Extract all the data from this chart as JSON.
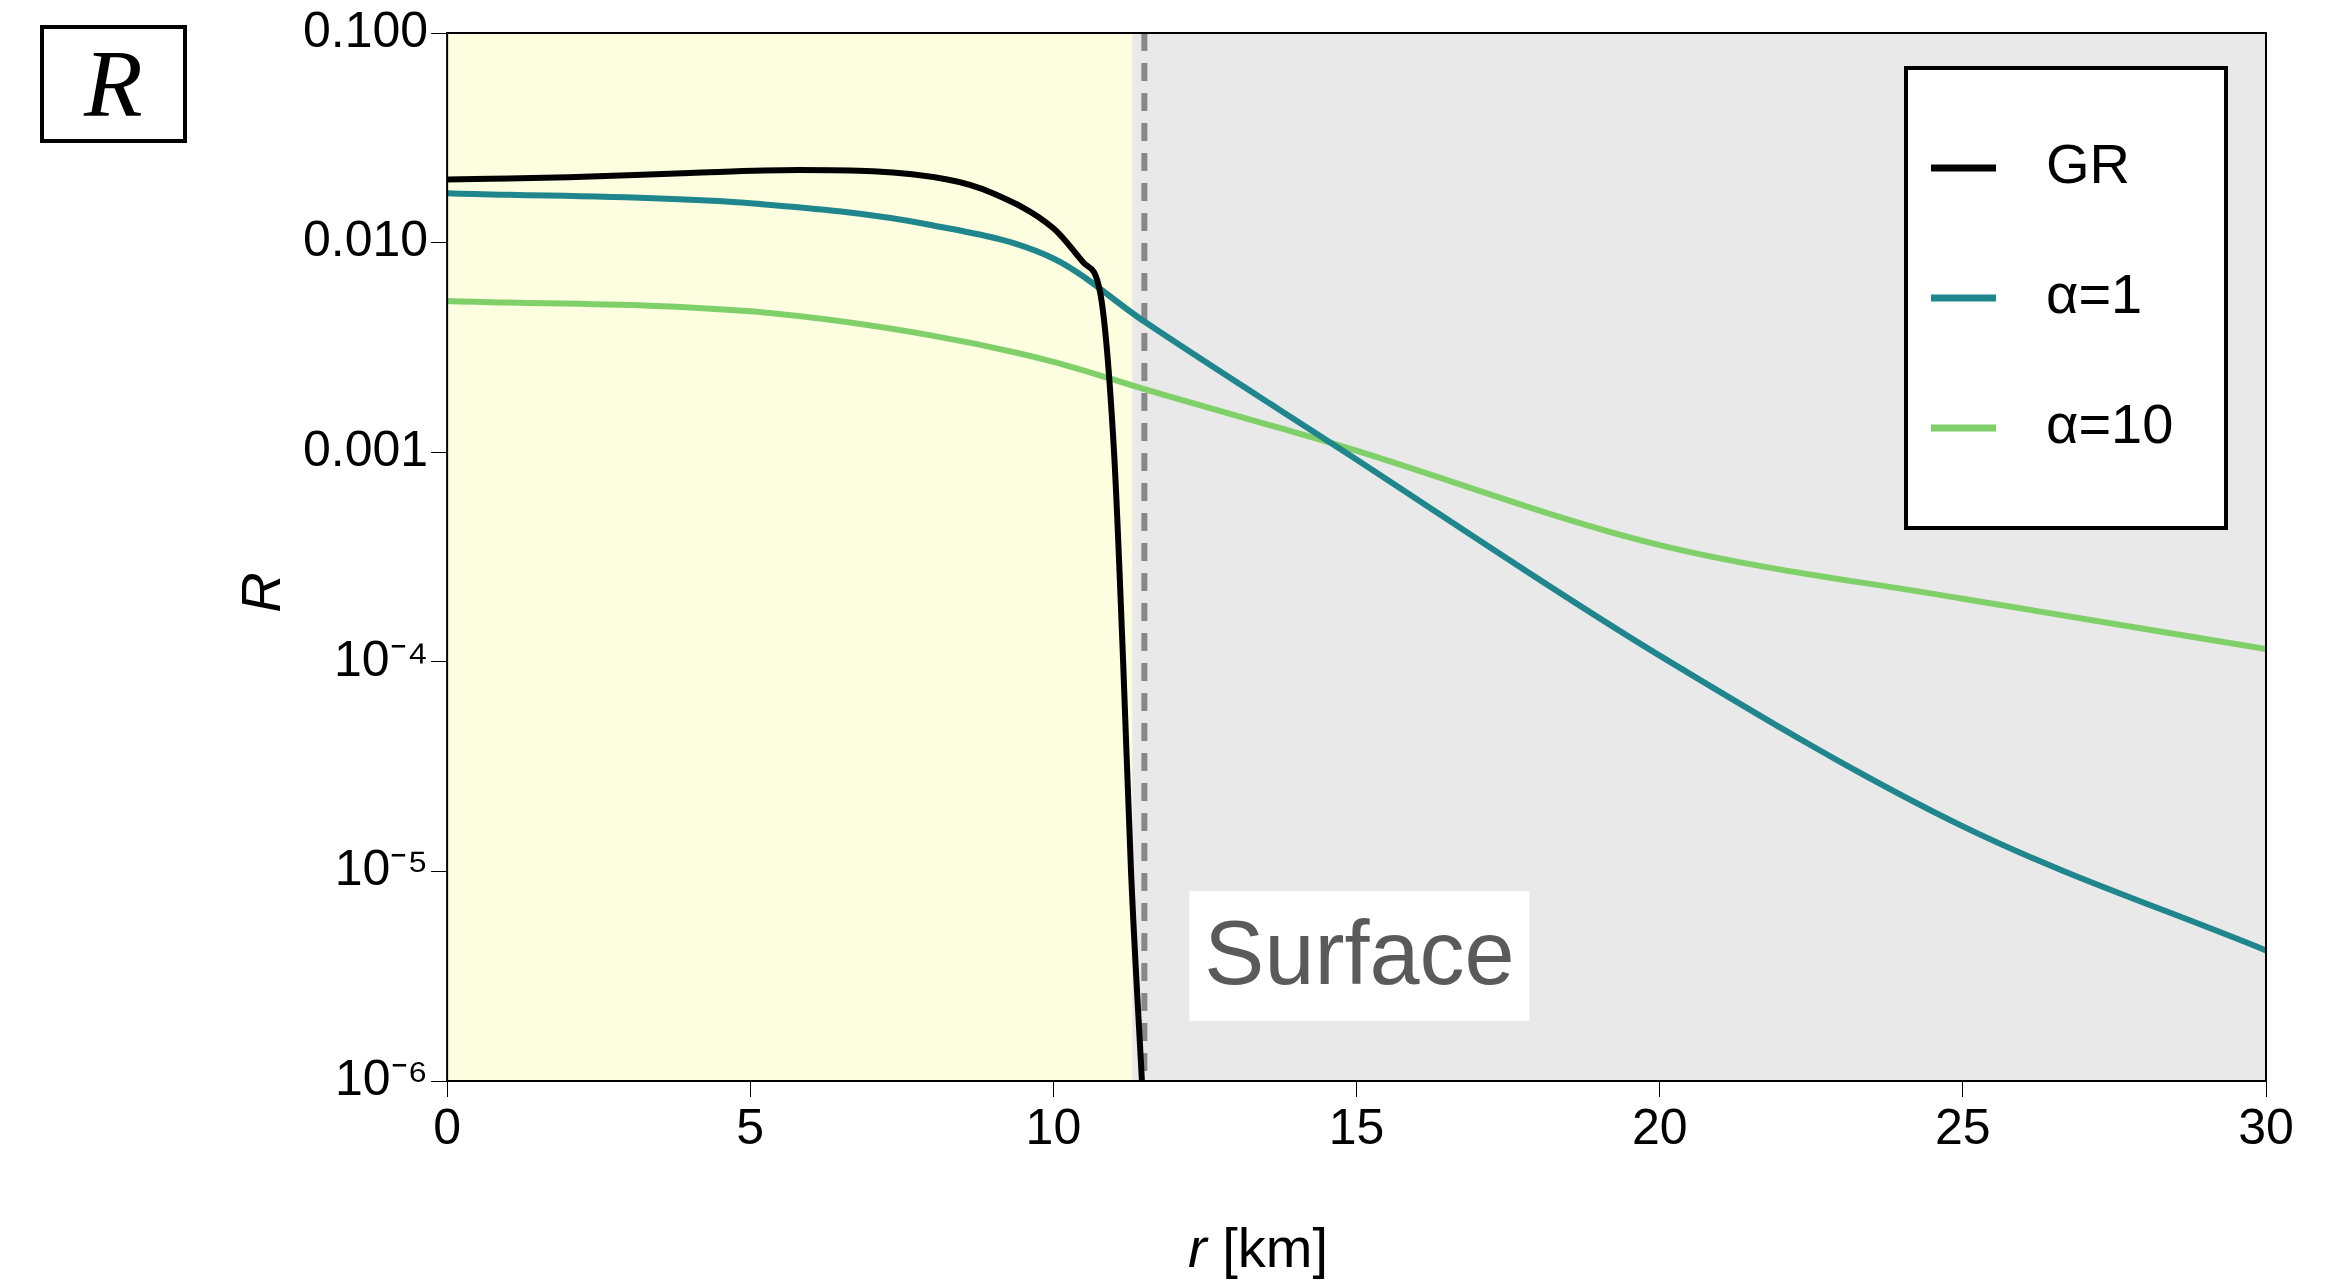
{
  "chart_data": {
    "type": "line",
    "title": "R",
    "xlabel": "r [km]",
    "ylabel": "R",
    "log": "y",
    "grid": false,
    "legend": "top right",
    "marker": "none",
    "line_style": "solid",
    "xlim": [
      0,
      30
    ],
    "xticks": [
      0,
      5,
      10,
      15,
      20,
      25,
      30
    ],
    "ylim": [
      1e-06,
      0.1
    ],
    "yticks": [
      {
        "value": 0.1,
        "label": "0.100"
      },
      {
        "value": 0.01,
        "label": "0.010"
      },
      {
        "value": 0.001,
        "label": "0.001"
      },
      {
        "value": 0.0001,
        "label": "10⁻⁴"
      },
      {
        "value": 1e-05,
        "label": "10⁻⁵"
      },
      {
        "value": 1e-06,
        "label": "10⁻⁶"
      }
    ],
    "bands": [
      {
        "axis": "x",
        "from": 0,
        "to": 11.3,
        "color": "#fdfde0"
      },
      {
        "axis": "x",
        "from": 11.3,
        "to": 30,
        "color": "#e9e9e9"
      }
    ],
    "ref_lines": [
      {
        "axis": "x",
        "value": 11.5,
        "label": "Surface",
        "color": "#888888",
        "line_style": "dashed"
      }
    ],
    "series": [
      {
        "name": "GR",
        "color": "#000000",
        "x": [
          0,
          2,
          4,
          5.8,
          8.25,
          9,
          10,
          10.5,
          10.77,
          11.0,
          11.15,
          11.28,
          11.46
        ],
        "values": [
          0.02,
          0.0205,
          0.0215,
          0.0222,
          0.02,
          0.0172,
          0.0117,
          0.008,
          0.0058,
          0.001,
          0.0001,
          1e-05,
          1e-06
        ]
      },
      {
        "name": "α=1",
        "color": "#1e868c",
        "x": [
          0,
          5,
          8,
          10,
          11.5,
          14.7,
          20,
          25,
          30
        ],
        "values": [
          0.0172,
          0.0154,
          0.0121,
          0.0084,
          0.0042,
          0.00105,
          0.000107,
          1.64e-05,
          4.2e-06
        ]
      },
      {
        "name": "α=10",
        "color": "#80d06a",
        "x": [
          0,
          5,
          8,
          10,
          11.5,
          14.7,
          20,
          25,
          30
        ],
        "values": [
          0.00527,
          0.0047,
          0.0036,
          0.0027,
          0.002,
          0.00108,
          0.00036,
          0.0002,
          0.000115
        ]
      }
    ]
  }
}
